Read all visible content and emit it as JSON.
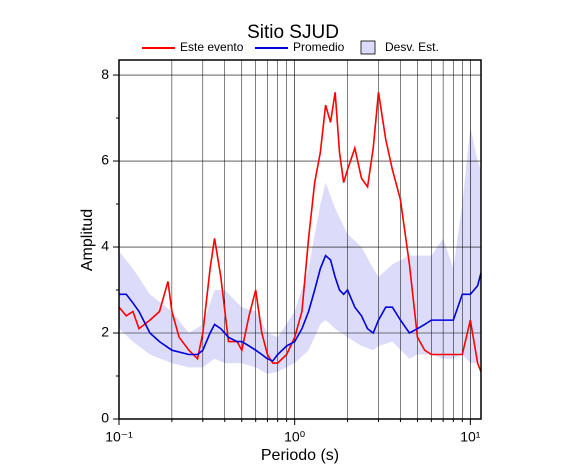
{
  "chart_data": {
    "type": "line",
    "title": "Sitio SJUD",
    "xlabel": "Periodo (s)",
    "ylabel": "Amplitud",
    "xscale": "log",
    "xlim": [
      0.1,
      11.5
    ],
    "ylim": [
      0,
      8.35
    ],
    "xticks": [
      {
        "value": 0.1,
        "label": "10⁻¹"
      },
      {
        "value": 1,
        "label": "10⁰"
      },
      {
        "value": 10,
        "label": "10¹"
      }
    ],
    "xminorticks": [
      0.2,
      0.3,
      0.4,
      0.5,
      0.6,
      0.7,
      0.8,
      0.9,
      2,
      3,
      4,
      5,
      6,
      7,
      8,
      9
    ],
    "yticks": [
      0,
      2,
      4,
      6,
      8
    ],
    "yminorticks": [
      1,
      3,
      5,
      7
    ],
    "grid": true,
    "band": {
      "name": "Desv. Est.",
      "color": "#dcdcfa",
      "x": [
        0.1,
        0.12,
        0.15,
        0.2,
        0.25,
        0.3,
        0.35,
        0.4,
        0.5,
        0.6,
        0.7,
        0.8,
        1.0,
        1.2,
        1.4,
        1.5,
        1.7,
        2.0,
        2.4,
        2.8,
        3.0,
        3.6,
        4.5,
        5.0,
        6.0,
        7.0,
        8.0,
        9.0,
        10,
        11,
        11.5
      ],
      "upper": [
        3.9,
        3.5,
        2.9,
        2.5,
        2.0,
        2.2,
        3.0,
        3.0,
        2.6,
        2.5,
        2.0,
        1.9,
        2.5,
        3.5,
        5.0,
        5.5,
        4.9,
        4.3,
        4.0,
        3.5,
        3.3,
        3.6,
        3.8,
        3.8,
        3.8,
        4.2,
        3.5,
        5.0,
        6.8,
        6.0,
        5.8
      ],
      "lower": [
        2.1,
        1.8,
        1.5,
        1.3,
        1.2,
        1.2,
        1.4,
        1.3,
        1.3,
        1.2,
        1.05,
        1.1,
        1.3,
        1.6,
        2.2,
        2.3,
        2.1,
        1.9,
        1.7,
        1.6,
        1.7,
        1.8,
        1.4,
        1.5,
        1.5,
        1.4,
        1.4,
        1.5,
        1.3,
        1.3,
        1.3
      ]
    },
    "series": [
      {
        "name": "Este evento",
        "color": "#ff0000",
        "x": [
          0.1,
          0.11,
          0.12,
          0.13,
          0.15,
          0.17,
          0.19,
          0.2,
          0.22,
          0.25,
          0.28,
          0.3,
          0.33,
          0.35,
          0.38,
          0.42,
          0.47,
          0.5,
          0.55,
          0.6,
          0.65,
          0.7,
          0.75,
          0.8,
          0.9,
          1.0,
          1.1,
          1.2,
          1.3,
          1.4,
          1.5,
          1.6,
          1.7,
          1.8,
          1.9,
          2.0,
          2.2,
          2.4,
          2.6,
          2.8,
          3.0,
          3.3,
          3.6,
          4.0,
          4.5,
          5.0,
          5.5,
          6.0,
          7.0,
          8.0,
          9.0,
          10,
          11,
          11.5
        ],
        "values": [
          2.6,
          2.4,
          2.5,
          2.1,
          2.3,
          2.5,
          3.2,
          2.5,
          1.9,
          1.6,
          1.4,
          2.0,
          3.5,
          4.2,
          3.3,
          1.8,
          1.8,
          1.6,
          2.4,
          3.0,
          2.0,
          1.5,
          1.3,
          1.3,
          1.5,
          1.9,
          2.5,
          4.2,
          5.5,
          6.2,
          7.3,
          6.9,
          7.6,
          6.2,
          5.5,
          5.8,
          6.3,
          5.6,
          5.4,
          6.3,
          7.6,
          6.5,
          5.8,
          5.1,
          3.6,
          1.9,
          1.6,
          1.5,
          1.5,
          1.5,
          1.5,
          2.3,
          1.3,
          1.1
        ]
      },
      {
        "name": "Promedio",
        "color": "#0000dd",
        "x": [
          0.1,
          0.11,
          0.12,
          0.13,
          0.15,
          0.17,
          0.2,
          0.25,
          0.28,
          0.3,
          0.33,
          0.35,
          0.38,
          0.42,
          0.47,
          0.5,
          0.55,
          0.6,
          0.65,
          0.7,
          0.75,
          0.8,
          0.9,
          1.0,
          1.1,
          1.2,
          1.3,
          1.4,
          1.5,
          1.6,
          1.7,
          1.8,
          1.9,
          2.0,
          2.2,
          2.4,
          2.6,
          2.8,
          3.0,
          3.3,
          3.6,
          4.0,
          4.5,
          5.0,
          5.5,
          6.0,
          7.0,
          8.0,
          9.0,
          10,
          11,
          11.5
        ],
        "values": [
          2.9,
          2.9,
          2.7,
          2.5,
          2.0,
          1.8,
          1.6,
          1.5,
          1.5,
          1.6,
          2.0,
          2.2,
          2.1,
          1.9,
          1.8,
          1.8,
          1.7,
          1.6,
          1.5,
          1.4,
          1.35,
          1.5,
          1.7,
          1.8,
          2.1,
          2.5,
          3.0,
          3.5,
          3.8,
          3.7,
          3.3,
          3.0,
          2.9,
          3.0,
          2.6,
          2.4,
          2.1,
          2.0,
          2.3,
          2.6,
          2.6,
          2.3,
          2.0,
          2.1,
          2.2,
          2.3,
          2.3,
          2.3,
          2.9,
          2.9,
          3.1,
          3.4
        ]
      }
    ]
  }
}
